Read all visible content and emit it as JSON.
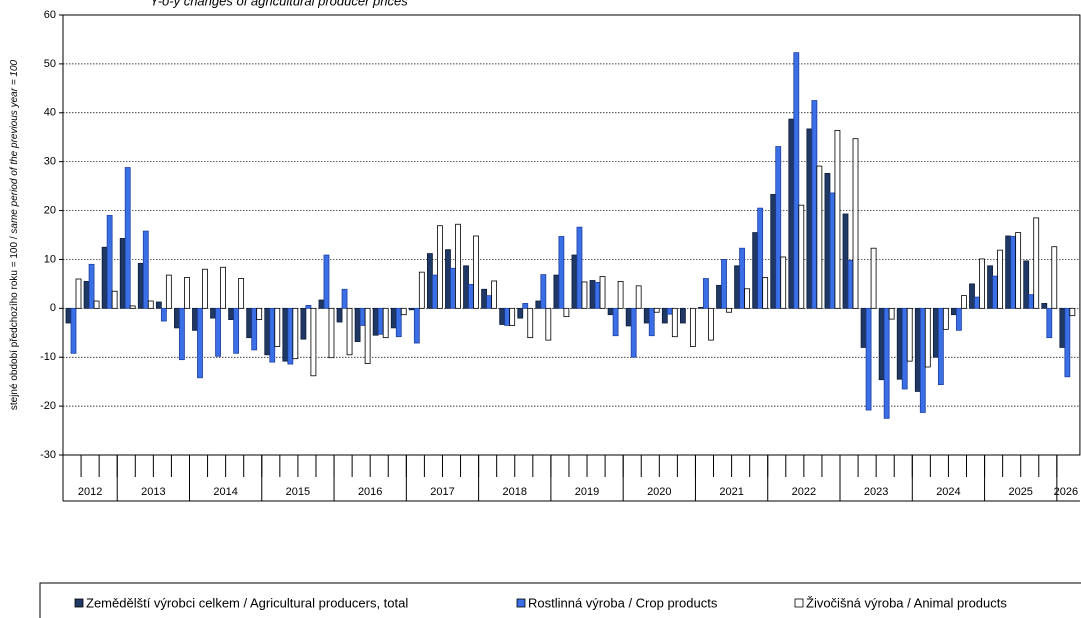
{
  "chart_data": {
    "type": "bar",
    "title": "Y-o-y changes of agricultural producer prices",
    "y_label": [
      "stejné období předchozího roku = 100 /",
      "same period of  the previous year = 100"
    ],
    "categories": [
      null,
      null,
      null,
      null,
      null,
      null,
      null,
      null,
      null,
      null,
      null,
      null,
      null,
      null,
      null,
      null,
      null,
      null,
      null,
      null,
      null,
      null,
      null,
      null,
      null,
      null,
      null,
      null,
      null,
      null,
      null,
      null,
      null,
      null,
      null,
      null,
      null,
      null,
      null,
      null,
      null,
      null,
      null,
      null,
      null,
      null,
      null,
      null,
      null,
      null,
      null,
      null,
      null,
      null,
      null,
      null
    ],
    "years": [
      "2012",
      "2013",
      "2014",
      "2015",
      "2016",
      "2017",
      "2018",
      "2019",
      "2020",
      "2021",
      "2022",
      "2023",
      "2024",
      "2025",
      "2026"
    ],
    "year_spans": [
      3,
      4,
      4,
      4,
      4,
      4,
      4,
      4,
      4,
      4,
      4,
      4,
      4,
      4,
      1
    ],
    "ylim": [
      -30,
      60
    ],
    "yticks": [
      -30,
      -20,
      -10,
      0,
      10,
      20,
      30,
      40,
      50,
      60
    ],
    "grid": true,
    "legend": "bottom",
    "series": [
      {
        "name": "Zemědělští výrobci celkem / Agricultural producers, total",
        "color": "#1f3864",
        "values": [
          -3,
          5.5,
          12.5,
          14.3,
          9.2,
          1.3,
          -4,
          -4.5,
          -2,
          -2.3,
          -6,
          -9.5,
          -10.8,
          -6.3,
          1.7,
          -2.8,
          -6.8,
          -5.5,
          -4,
          -0.3,
          11.2,
          12,
          8.7,
          3.9,
          -3.3,
          -2,
          1.5,
          6.8,
          10.9,
          5.7,
          -1.3,
          -3.6,
          -3,
          -3,
          -3,
          0.2,
          4.7,
          8.7,
          15.5,
          23.3,
          38.7,
          36.7,
          27.6,
          19.3,
          -8,
          -14.6,
          -14.5,
          -17,
          -10,
          -1.3,
          5,
          8.7,
          14.8,
          9.7,
          1,
          -8
        ]
      },
      {
        "name": "Rostlinná výroba / Crop products",
        "color": "#3a6fe6",
        "values": [
          -9.2,
          9,
          19,
          28.8,
          15.8,
          -2.6,
          -10.5,
          -14.2,
          -9.8,
          -9.2,
          -8.5,
          -11,
          -11.4,
          0.6,
          10.9,
          3.9,
          -3.5,
          -5.3,
          -5.8,
          -7.1,
          6.8,
          8.2,
          4.9,
          2.6,
          -3.5,
          1,
          6.9,
          14.7,
          16.6,
          5.3,
          -5.6,
          -10,
          -5.6,
          -1.2,
          0,
          6.1,
          10,
          12.3,
          20.5,
          33.1,
          52.3,
          42.5,
          23.6,
          9.8,
          -20.8,
          -22.5,
          -16.5,
          -21.3,
          -15.6,
          -4.5,
          2.3,
          6.6,
          14.7,
          2.8,
          -6,
          -14
        ]
      },
      {
        "name": "Živočišná výroba / Animal products",
        "color": "#ffffff",
        "values": [
          6,
          1.5,
          3.5,
          0.5,
          1.5,
          6.8,
          6.3,
          8,
          8.4,
          6.1,
          -2.3,
          -7.8,
          -10.3,
          -13.8,
          -10.1,
          -9.5,
          -11.3,
          -6,
          -1.3,
          7.4,
          16.9,
          17.2,
          14.8,
          5.6,
          -3.5,
          -6,
          -6.5,
          -1.7,
          5.4,
          6.5,
          5.5,
          4.6,
          -0.8,
          -5.8,
          -7.8,
          -6.5,
          -0.8,
          4,
          6.3,
          10.5,
          21.1,
          29.1,
          36.4,
          34.7,
          12.3,
          -2.2,
          -10.8,
          -12,
          -4.3,
          2.6,
          10.1,
          11.9,
          15.5,
          18.5,
          12.6,
          -1.5
        ]
      }
    ]
  }
}
